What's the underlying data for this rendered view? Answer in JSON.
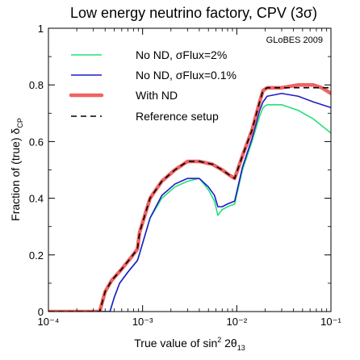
{
  "chart_data": {
    "type": "line",
    "title": "Low energy neutrino factory, CPV (3σ)",
    "xlabel": "True value of sin² 2θ₁₃",
    "ylabel": "Fraction of (true) δCP",
    "x_scale": "log",
    "xlim": [
      0.0001,
      0.1
    ],
    "ylim": [
      0,
      1
    ],
    "x_ticks": [
      "10⁻⁴",
      "10⁻³",
      "10⁻²",
      "10⁻¹"
    ],
    "y_ticks": [
      "0",
      "0.2",
      "0.4",
      "0.6",
      "0.8",
      "1"
    ],
    "annotation": "GLoBES 2009",
    "legend_position": "top-left",
    "grid": false,
    "series": [
      {
        "name": "No ND, σFlux=2%",
        "color": "#22e07a",
        "style": "solid",
        "points": [
          [
            0.0001,
            0
          ],
          [
            0.00045,
            0
          ],
          [
            0.0005,
            0.05
          ],
          [
            0.00057,
            0.1
          ],
          [
            0.0007,
            0.14
          ],
          [
            0.00088,
            0.18
          ],
          [
            0.00092,
            0.2
          ],
          [
            0.0012,
            0.33
          ],
          [
            0.0016,
            0.4
          ],
          [
            0.0022,
            0.44
          ],
          [
            0.003,
            0.46
          ],
          [
            0.004,
            0.47
          ],
          [
            0.005,
            0.43
          ],
          [
            0.0058,
            0.39
          ],
          [
            0.0063,
            0.34
          ],
          [
            0.007,
            0.36
          ],
          [
            0.008,
            0.37
          ],
          [
            0.0095,
            0.38
          ],
          [
            0.0115,
            0.5
          ],
          [
            0.0145,
            0.6
          ],
          [
            0.0175,
            0.69
          ],
          [
            0.019,
            0.72
          ],
          [
            0.021,
            0.73
          ],
          [
            0.03,
            0.73
          ],
          [
            0.045,
            0.71
          ],
          [
            0.065,
            0.68
          ],
          [
            0.1,
            0.63
          ]
        ]
      },
      {
        "name": "No ND, σFlux=0.1%",
        "color": "#1c1cc8",
        "style": "solid",
        "points": [
          [
            0.0001,
            0
          ],
          [
            0.00045,
            0
          ],
          [
            0.0005,
            0.05
          ],
          [
            0.00057,
            0.1
          ],
          [
            0.0007,
            0.14
          ],
          [
            0.00088,
            0.18
          ],
          [
            0.00092,
            0.2
          ],
          [
            0.0012,
            0.33
          ],
          [
            0.0016,
            0.41
          ],
          [
            0.0022,
            0.45
          ],
          [
            0.003,
            0.47
          ],
          [
            0.004,
            0.47
          ],
          [
            0.005,
            0.44
          ],
          [
            0.0058,
            0.41
          ],
          [
            0.0063,
            0.37
          ],
          [
            0.007,
            0.37
          ],
          [
            0.008,
            0.38
          ],
          [
            0.0095,
            0.39
          ],
          [
            0.0115,
            0.51
          ],
          [
            0.0145,
            0.61
          ],
          [
            0.0175,
            0.71
          ],
          [
            0.019,
            0.74
          ],
          [
            0.021,
            0.76
          ],
          [
            0.03,
            0.77
          ],
          [
            0.045,
            0.76
          ],
          [
            0.065,
            0.74
          ],
          [
            0.1,
            0.72
          ]
        ]
      },
      {
        "name": "With ND",
        "color": "#f06262",
        "style": "thick",
        "points": [
          [
            0.0001,
            0
          ],
          [
            0.00035,
            0
          ],
          [
            0.0004,
            0.07
          ],
          [
            0.00047,
            0.11
          ],
          [
            0.0006,
            0.15
          ],
          [
            0.00075,
            0.19
          ],
          [
            0.00088,
            0.22
          ],
          [
            0.00093,
            0.28
          ],
          [
            0.0012,
            0.4
          ],
          [
            0.0016,
            0.46
          ],
          [
            0.0022,
            0.5
          ],
          [
            0.003,
            0.53
          ],
          [
            0.004,
            0.53
          ],
          [
            0.0055,
            0.52
          ],
          [
            0.007,
            0.5
          ],
          [
            0.0085,
            0.48
          ],
          [
            0.0095,
            0.47
          ],
          [
            0.0115,
            0.55
          ],
          [
            0.0145,
            0.64
          ],
          [
            0.0175,
            0.74
          ],
          [
            0.019,
            0.78
          ],
          [
            0.021,
            0.79
          ],
          [
            0.03,
            0.79
          ],
          [
            0.045,
            0.8
          ],
          [
            0.065,
            0.8
          ],
          [
            0.08,
            0.79
          ],
          [
            0.1,
            0.77
          ]
        ]
      },
      {
        "name": "Reference setup",
        "color": "#000000",
        "style": "dashed",
        "points": [
          [
            0.0001,
            0
          ],
          [
            0.00035,
            0
          ],
          [
            0.0004,
            0.07
          ],
          [
            0.00047,
            0.11
          ],
          [
            0.0006,
            0.15
          ],
          [
            0.00075,
            0.19
          ],
          [
            0.00088,
            0.22
          ],
          [
            0.00093,
            0.28
          ],
          [
            0.0012,
            0.4
          ],
          [
            0.0016,
            0.46
          ],
          [
            0.0022,
            0.5
          ],
          [
            0.003,
            0.53
          ],
          [
            0.004,
            0.53
          ],
          [
            0.0055,
            0.52
          ],
          [
            0.007,
            0.5
          ],
          [
            0.0085,
            0.48
          ],
          [
            0.0095,
            0.47
          ],
          [
            0.0115,
            0.55
          ],
          [
            0.0145,
            0.64
          ],
          [
            0.0175,
            0.74
          ],
          [
            0.019,
            0.78
          ],
          [
            0.021,
            0.79
          ],
          [
            0.03,
            0.79
          ],
          [
            0.045,
            0.79
          ],
          [
            0.065,
            0.79
          ],
          [
            0.1,
            0.79
          ]
        ]
      }
    ]
  }
}
